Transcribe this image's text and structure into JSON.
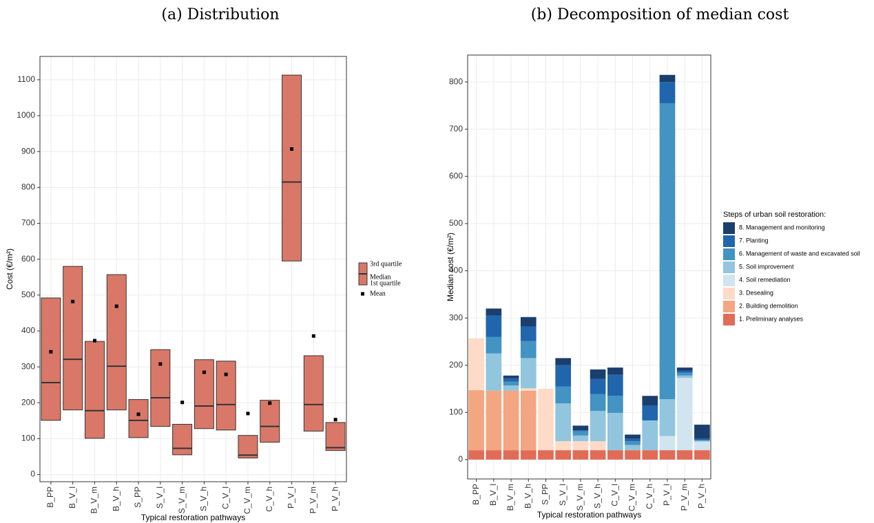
{
  "chart_data": [
    {
      "type": "box",
      "title": "(a) Distribution",
      "x_label": "Typical restoration pathways",
      "y_label": "Cost (€/m²)",
      "categories": [
        "B_PP",
        "B_V_l",
        "B_V_m",
        "B_V_h",
        "S_PP",
        "S_V_l",
        "S_V_m",
        "S_V_h",
        "C_V_l",
        "C_V_m",
        "C_V_h",
        "P_V_l",
        "P_V_m",
        "P_V_h"
      ],
      "q1": [
        151,
        180,
        101,
        180,
        103,
        134,
        55,
        128,
        124,
        46,
        90,
        595,
        121,
        67
      ],
      "median": [
        256,
        321,
        178,
        302,
        151,
        214,
        73,
        191,
        195,
        54,
        134,
        815,
        195,
        75
      ],
      "q3": [
        492,
        580,
        371,
        557,
        209,
        348,
        140,
        320,
        316,
        109,
        207,
        1113,
        331,
        145
      ],
      "mean": [
        342,
        482,
        373,
        469,
        168,
        308,
        201,
        285,
        279,
        170,
        199,
        907,
        386,
        153
      ],
      "color": "#d97868",
      "legend_labels": [
        "3rd quartile",
        "Median",
        "1st quartile",
        "Mean"
      ],
      "ylim": [
        -20,
        1165
      ],
      "yticks": [
        0,
        100,
        200,
        300,
        400,
        500,
        600,
        700,
        800,
        900,
        1000,
        1100
      ],
      "grid": true
    },
    {
      "type": "stacked_bar",
      "title": "(b) Decomposition of median cost",
      "x_label": "Typical restoration pathways",
      "y_label": "Median cost (€/m²)",
      "legend_title": "Steps of urban soil restoration:",
      "categories": [
        "B_PP",
        "B_V_l",
        "B_V_m",
        "B_V_h",
        "S_PP",
        "S_V_l",
        "S_V_m",
        "S_V_h",
        "C_V_l",
        "C_V_m",
        "C_V_h",
        "P_V_l",
        "P_V_m",
        "P_V_h"
      ],
      "series": [
        {
          "name": "1. Preliminary analyses",
          "color": "#e06c57",
          "values": [
            20,
            20,
            20,
            20,
            20,
            20,
            20,
            20,
            20,
            20,
            20,
            20,
            20,
            20
          ]
        },
        {
          "name": "2. Building demolition",
          "color": "#f4a582",
          "values": [
            127,
            126,
            126,
            126,
            0,
            0,
            0,
            0,
            0,
            0,
            0,
            0,
            0,
            0
          ]
        },
        {
          "name": "3. Desealing",
          "color": "#fddbc7",
          "values": [
            110,
            0,
            0,
            5,
            130,
            19,
            19,
            19,
            0,
            0,
            0,
            0,
            0,
            0
          ]
        },
        {
          "name": "4. Soil remediation",
          "color": "#d1e5f0",
          "values": [
            0,
            0,
            0,
            0,
            0,
            0,
            0,
            0,
            0,
            0,
            0,
            30,
            153,
            18
          ]
        },
        {
          "name": "5. Soil improvement",
          "color": "#92c5de",
          "values": [
            0,
            79,
            11,
            64,
            0,
            80,
            12,
            64,
            79,
            11,
            63,
            78,
            5,
            2
          ]
        },
        {
          "name": "6. Management of waste and excavated soil",
          "color": "#4393c3",
          "values": [
            0,
            35,
            8,
            36,
            0,
            36,
            9,
            36,
            36,
            8,
            0,
            627,
            6,
            1
          ]
        },
        {
          "name": "7. Planting",
          "color": "#2166ac",
          "values": [
            0,
            45,
            7,
            31,
            0,
            45,
            2,
            32,
            45,
            5,
            32,
            45,
            4,
            3
          ]
        },
        {
          "name": "8. Management and monitoring",
          "color": "#1a3e6e",
          "values": [
            0,
            15,
            6,
            20,
            0,
            15,
            10,
            20,
            15,
            9,
            20,
            15,
            7,
            30
          ]
        }
      ],
      "ylim": [
        -41,
        857
      ],
      "yticks": [
        0,
        100,
        200,
        300,
        400,
        500,
        600,
        700,
        800
      ],
      "grid": true
    }
  ]
}
